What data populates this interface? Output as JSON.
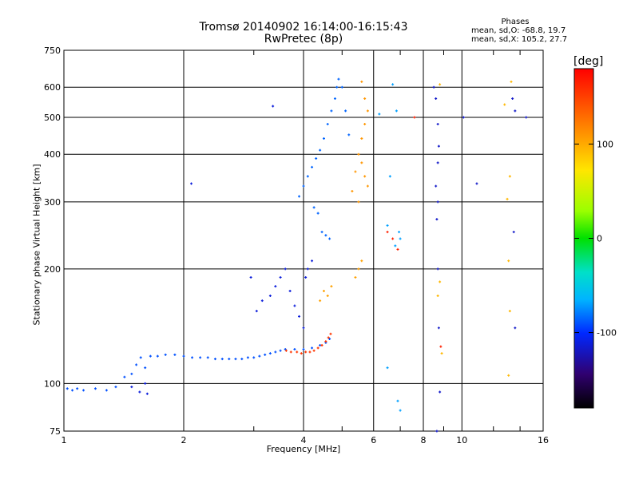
{
  "header": {
    "title_line1": "Tromsø 20140902 16:14:00-16:15:43",
    "title_line2": "RwPretec (8p)"
  },
  "phase_box": {
    "label": "Phases",
    "line_o": "mean, sd,O: -68.8, 19.7",
    "line_x": "mean, sd,X: 105.2, 27.7"
  },
  "chart_data": {
    "type": "scatter",
    "xlabel": "Frequency [MHz]",
    "ylabel": "Stationary phase Virtual Height [km]",
    "xscale": "log",
    "yscale": "log",
    "xlim": [
      1,
      16
    ],
    "ylim": [
      75,
      750
    ],
    "xticks": [
      1,
      2,
      4,
      6,
      8,
      10,
      16
    ],
    "yticks": [
      75,
      100,
      200,
      300,
      400,
      500,
      600,
      750
    ],
    "grid": true,
    "colorbar": {
      "label": "[deg]",
      "range": [
        -180,
        180
      ],
      "ticks": [
        100,
        0,
        -100
      ],
      "colormap": "rainbow: black-purple-blue-cyan-green-yellow-orange-red"
    },
    "series": [
      {
        "points": [
          [
            1.02,
            97
          ],
          [
            1.05,
            96
          ],
          [
            1.08,
            97
          ],
          [
            1.12,
            96
          ],
          [
            1.2,
            97
          ],
          [
            1.28,
            96
          ],
          [
            1.35,
            98
          ],
          [
            1.42,
            104
          ],
          [
            1.48,
            106
          ],
          [
            1.52,
            112
          ],
          [
            1.56,
            117
          ],
          [
            1.6,
            110
          ],
          [
            1.65,
            118
          ],
          [
            1.72,
            118
          ],
          [
            1.8,
            119
          ],
          [
            1.9,
            119
          ],
          [
            2.0,
            118
          ],
          [
            2.1,
            117
          ],
          [
            2.2,
            117
          ],
          [
            2.3,
            117
          ],
          [
            2.4,
            116
          ],
          [
            2.5,
            116
          ],
          [
            2.6,
            116
          ],
          [
            2.7,
            116
          ],
          [
            2.8,
            116
          ],
          [
            2.9,
            117
          ],
          [
            3.0,
            117
          ],
          [
            3.1,
            118
          ],
          [
            3.2,
            119
          ],
          [
            3.3,
            120
          ],
          [
            3.4,
            121
          ],
          [
            3.5,
            122
          ],
          [
            3.6,
            123
          ],
          [
            3.8,
            123
          ],
          [
            4.0,
            123
          ],
          [
            4.2,
            124
          ],
          [
            4.4,
            126
          ],
          [
            4.55,
            128
          ],
          [
            4.65,
            131
          ]
        ],
        "phase": -90
      },
      {
        "points": [
          [
            1.48,
            98
          ],
          [
            1.55,
            95
          ],
          [
            1.6,
            100
          ],
          [
            1.62,
            94
          ],
          [
            2.09,
            335
          ],
          [
            3.35,
            535
          ],
          [
            2.95,
            190
          ],
          [
            3.05,
            155
          ],
          [
            3.15,
            165
          ],
          [
            3.3,
            170
          ],
          [
            3.4,
            180
          ],
          [
            3.5,
            190
          ],
          [
            3.6,
            200
          ],
          [
            3.7,
            175
          ],
          [
            3.8,
            160
          ],
          [
            3.9,
            150
          ],
          [
            4.0,
            140
          ],
          [
            4.05,
            190
          ],
          [
            4.1,
            200
          ],
          [
            4.2,
            210
          ]
        ],
        "phase": -110
      },
      {
        "points": [
          [
            3.9,
            310
          ],
          [
            4.0,
            330
          ],
          [
            4.1,
            350
          ],
          [
            4.2,
            370
          ],
          [
            4.3,
            390
          ],
          [
            4.4,
            410
          ],
          [
            4.5,
            440
          ],
          [
            4.6,
            480
          ],
          [
            4.7,
            520
          ],
          [
            4.8,
            560
          ],
          [
            4.85,
            600
          ],
          [
            4.9,
            630
          ],
          [
            5.0,
            600
          ],
          [
            5.1,
            520
          ],
          [
            5.2,
            450
          ],
          [
            4.25,
            290
          ],
          [
            4.35,
            280
          ],
          [
            4.45,
            250
          ],
          [
            4.55,
            245
          ],
          [
            4.65,
            240
          ]
        ],
        "phase": -85
      },
      {
        "points": [
          [
            3.62,
            122
          ],
          [
            3.72,
            121
          ],
          [
            3.85,
            121
          ],
          [
            3.95,
            120
          ],
          [
            4.05,
            121
          ],
          [
            4.15,
            121
          ],
          [
            4.25,
            122
          ],
          [
            4.35,
            124
          ],
          [
            4.45,
            126
          ],
          [
            4.55,
            129
          ],
          [
            4.62,
            132
          ],
          [
            4.68,
            135
          ]
        ],
        "phase": 155
      },
      {
        "points": [
          [
            4.4,
            165
          ],
          [
            4.5,
            175
          ],
          [
            4.6,
            170
          ],
          [
            4.7,
            180
          ],
          [
            5.4,
            190
          ],
          [
            5.5,
            200
          ],
          [
            5.6,
            210
          ]
        ],
        "phase": 105
      },
      {
        "points": [
          [
            5.3,
            320
          ],
          [
            5.4,
            360
          ],
          [
            5.5,
            400
          ],
          [
            5.6,
            440
          ],
          [
            5.7,
            480
          ],
          [
            5.8,
            520
          ],
          [
            5.6,
            380
          ],
          [
            5.7,
            350
          ],
          [
            5.8,
            330
          ],
          [
            5.5,
            300
          ],
          [
            5.6,
            620
          ],
          [
            5.7,
            560
          ]
        ],
        "phase": 110
      },
      {
        "points": [
          [
            6.2,
            510
          ],
          [
            6.7,
            610
          ],
          [
            6.85,
            520
          ],
          [
            6.95,
            250
          ],
          [
            7.0,
            240
          ],
          [
            6.5,
            260
          ],
          [
            6.8,
            230
          ],
          [
            6.6,
            350
          ],
          [
            6.9,
            90
          ],
          [
            7.0,
            85
          ],
          [
            6.5,
            110
          ]
        ],
        "phase": -70
      },
      {
        "points": [
          [
            8.5,
            600
          ],
          [
            8.6,
            560
          ],
          [
            8.7,
            480
          ],
          [
            8.75,
            420
          ],
          [
            8.7,
            380
          ],
          [
            8.6,
            330
          ],
          [
            8.7,
            300
          ],
          [
            8.65,
            270
          ],
          [
            8.7,
            200
          ],
          [
            8.75,
            140
          ],
          [
            8.8,
            95
          ],
          [
            8.65,
            75
          ],
          [
            10.1,
            500
          ],
          [
            10.9,
            335
          ],
          [
            13.4,
            560
          ],
          [
            13.6,
            520
          ],
          [
            13.5,
            250
          ],
          [
            13.6,
            140
          ],
          [
            14.5,
            500
          ]
        ],
        "phase": -115
      },
      {
        "points": [
          [
            8.8,
            610
          ],
          [
            8.9,
            120
          ],
          [
            8.7,
            170
          ],
          [
            8.8,
            185
          ],
          [
            12.8,
            540
          ],
          [
            13.3,
            620
          ],
          [
            13.2,
            350
          ],
          [
            13.0,
            305
          ],
          [
            13.1,
            210
          ],
          [
            13.2,
            155
          ],
          [
            13.1,
            105
          ]
        ],
        "phase": 95
      },
      {
        "points": [
          [
            7.6,
            500
          ],
          [
            6.5,
            250
          ],
          [
            6.7,
            240
          ],
          [
            6.9,
            225
          ],
          [
            8.85,
            125
          ]
        ],
        "phase": 165
      }
    ]
  }
}
